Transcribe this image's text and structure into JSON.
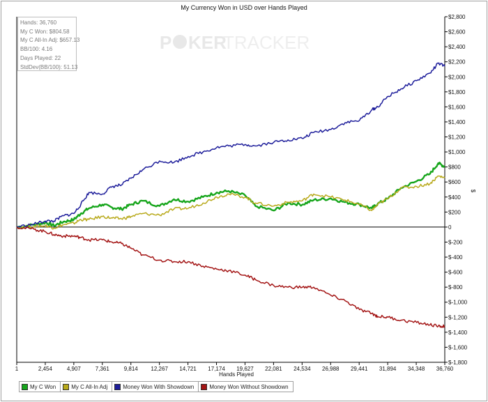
{
  "chart_data": {
    "type": "line",
    "title": "My Currency Won in USD over Hands Played",
    "xlabel": "Hands Played",
    "ylabel": "$",
    "xlim": [
      1,
      36760
    ],
    "ylim": [
      -1800,
      2800
    ],
    "x_ticks": [
      "1",
      "2,454",
      "4,907",
      "7,361",
      "9,814",
      "12,267",
      "14,721",
      "17,174",
      "19,627",
      "22,081",
      "24,534",
      "26,988",
      "29,441",
      "31,894",
      "34,348",
      "36,760"
    ],
    "y_ticks": [
      "$2,800",
      "$2,600",
      "$2,400",
      "$2,200",
      "$2,000",
      "$1,800",
      "$1,600",
      "$1,400",
      "$1,200",
      "$1,000",
      "$800",
      "$600",
      "$400",
      "$200",
      "0",
      "$-200",
      "$-400",
      "$-600",
      "$-800",
      "$-1,000",
      "$-1,200",
      "$-1,400",
      "$-1,600",
      "$-1,800"
    ],
    "watermark": {
      "left": "P",
      "mid": "KER",
      "right": "TRACKER"
    },
    "legend_position": "bottom-left",
    "grid": false,
    "series": [
      {
        "name": "My C Won",
        "color": "#16a51b",
        "x": [
          1,
          1500,
          2454,
          3200,
          4000,
          4907,
          5500,
          6200,
          7361,
          8200,
          9000,
          9814,
          10800,
          12267,
          13500,
          14721,
          16000,
          17174,
          18200,
          19627,
          20500,
          22081,
          23300,
          24534,
          25500,
          26988,
          28200,
          29441,
          30500,
          31000,
          31894,
          33000,
          34348,
          35500,
          36200,
          36760
        ],
        "values": [
          0,
          30,
          60,
          20,
          70,
          100,
          180,
          250,
          300,
          260,
          240,
          300,
          350,
          280,
          370,
          340,
          400,
          460,
          480,
          420,
          280,
          220,
          320,
          300,
          360,
          380,
          330,
          300,
          250,
          310,
          380,
          520,
          610,
          710,
          850,
          805
        ]
      },
      {
        "name": "My C All-In Adj",
        "color": "#b8a91a",
        "x": [
          1,
          1500,
          2454,
          3200,
          4000,
          4907,
          5500,
          6200,
          7361,
          8200,
          9000,
          9814,
          10800,
          12267,
          13500,
          14721,
          16000,
          17174,
          18200,
          19627,
          20500,
          22081,
          23300,
          24534,
          25500,
          26988,
          28200,
          29441,
          30500,
          31000,
          31894,
          33000,
          34348,
          35500,
          36200,
          36760
        ],
        "values": [
          0,
          10,
          20,
          -10,
          30,
          50,
          100,
          100,
          140,
          120,
          110,
          140,
          180,
          160,
          240,
          250,
          320,
          400,
          440,
          400,
          320,
          280,
          330,
          350,
          440,
          400,
          360,
          300,
          220,
          300,
          380,
          520,
          540,
          580,
          680,
          657
        ]
      },
      {
        "name": "Money Won With Showdown",
        "color": "#1c1c9a",
        "x": [
          1,
          1500,
          2454,
          3200,
          4000,
          4907,
          5500,
          6200,
          7361,
          8200,
          9000,
          9814,
          10800,
          12267,
          13500,
          14721,
          16000,
          17174,
          18200,
          19627,
          20500,
          22081,
          23300,
          24534,
          25500,
          26988,
          28200,
          29441,
          30500,
          31000,
          31894,
          33000,
          34348,
          35500,
          36200,
          36760
        ],
        "values": [
          0,
          40,
          80,
          80,
          150,
          180,
          300,
          460,
          440,
          540,
          560,
          650,
          760,
          880,
          860,
          940,
          1000,
          1060,
          1080,
          1100,
          1080,
          1130,
          1160,
          1180,
          1260,
          1300,
          1390,
          1420,
          1560,
          1600,
          1740,
          1840,
          1950,
          2050,
          2180,
          2140
        ]
      },
      {
        "name": "Money Won Without Showdown",
        "color": "#a31414",
        "x": [
          1,
          1500,
          2454,
          3200,
          4000,
          4907,
          5500,
          6200,
          7361,
          8200,
          9000,
          9814,
          10800,
          12267,
          13500,
          14721,
          16000,
          17174,
          18200,
          19627,
          20500,
          22081,
          23300,
          24534,
          25500,
          26988,
          28200,
          29441,
          30500,
          31000,
          31894,
          33000,
          34348,
          35500,
          36200,
          36760
        ],
        "values": [
          0,
          -30,
          -60,
          -100,
          -120,
          -120,
          -140,
          -170,
          -170,
          -200,
          -220,
          -280,
          -370,
          -440,
          -460,
          -460,
          -520,
          -560,
          -580,
          -640,
          -700,
          -780,
          -800,
          -800,
          -800,
          -910,
          -980,
          -1100,
          -1150,
          -1190,
          -1200,
          -1240,
          -1270,
          -1300,
          -1320,
          -1320
        ]
      }
    ]
  },
  "stats": {
    "hands": "Hands: 36,760",
    "my_c_won": "My C Won: $804.58",
    "all_in_adj": "My C All-In Adj: $657.13",
    "bb100": "BB/100: 4.16",
    "days_played": "Days Played: 22",
    "stddev": "StdDev(BB/100): 51.13"
  }
}
